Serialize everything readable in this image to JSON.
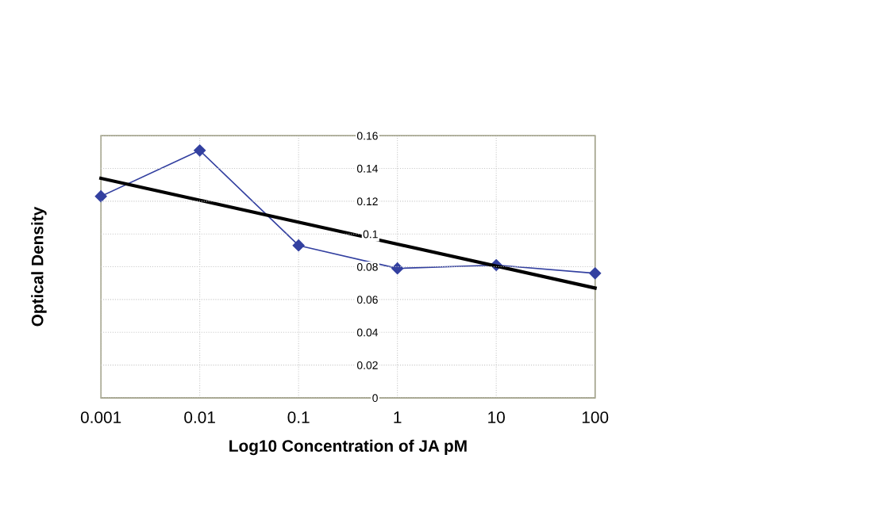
{
  "chart_data": {
    "type": "line",
    "xlabel": "Log10 Concentration of JA pM",
    "ylabel": "Optical Density",
    "log": "x",
    "x": [
      0.001,
      0.01,
      0.1,
      1,
      10,
      100
    ],
    "series": [
      {
        "color": "#3340a0",
        "values": [
          0.123,
          0.151,
          0.093,
          0.079,
          0.081,
          0.076
        ],
        "marker": "diamond"
      },
      {
        "color": "#000000",
        "x": [
          0.001,
          100
        ],
        "values": [
          0.134,
          0.067
        ],
        "marker": "none"
      }
    ],
    "xlim": [
      0.001,
      100
    ],
    "xticks": [
      0.001,
      0.01,
      0.1,
      1,
      10,
      100
    ],
    "ylim": [
      0,
      0.16
    ],
    "yticks": [
      0,
      0.02,
      0.04,
      0.06,
      0.08,
      0.1,
      0.12,
      0.14,
      0.16
    ],
    "grid": true,
    "legend": false
  }
}
